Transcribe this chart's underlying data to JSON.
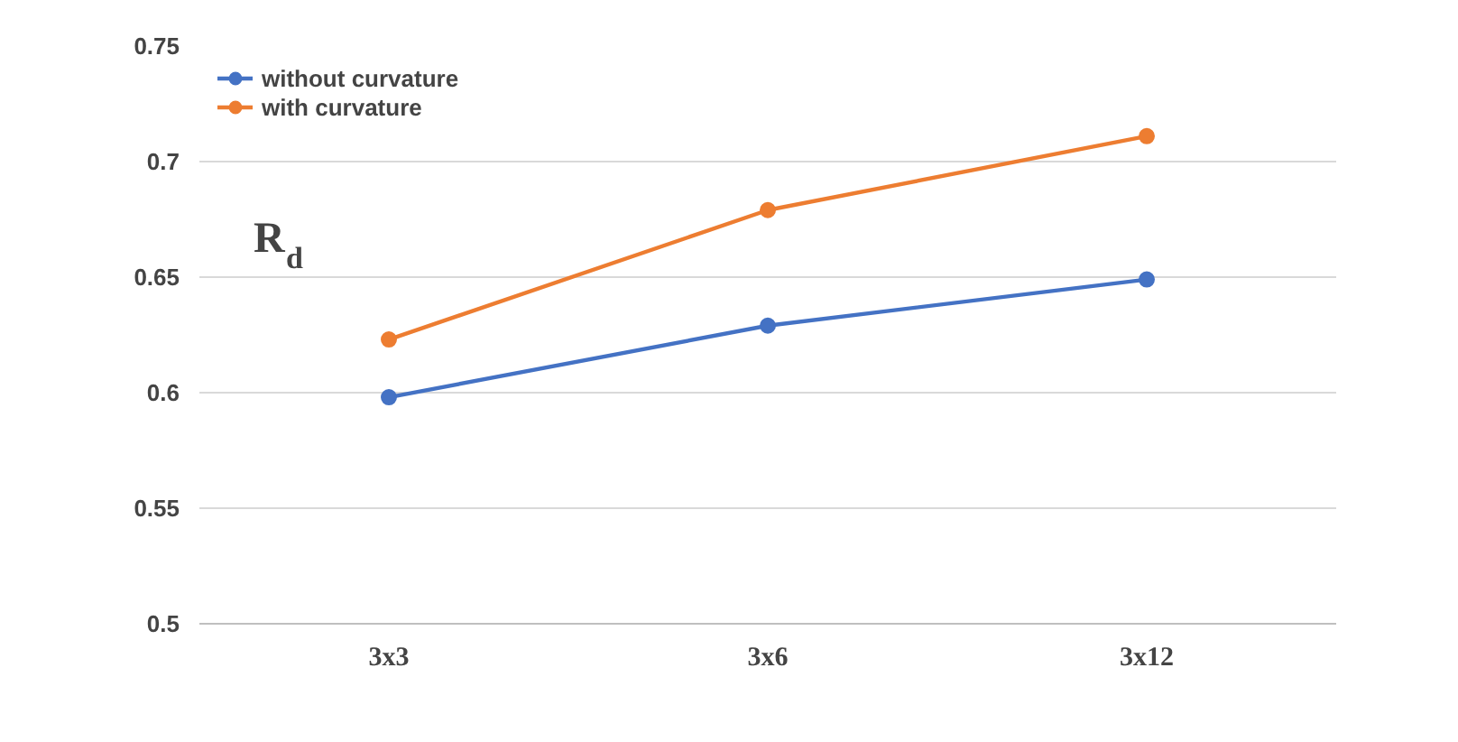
{
  "chart_data": {
    "type": "line",
    "ylabel": "R$_{d}$",
    "categories": [
      "3x3",
      "3x6",
      "3x12"
    ],
    "series": [
      {
        "name": "without curvature",
        "color": "#4472c4",
        "values": [
          0.598,
          0.629,
          0.649
        ]
      },
      {
        "name": "with curvature",
        "color": "#ed7d31",
        "values": [
          0.623,
          0.679,
          0.711
        ]
      }
    ],
    "ylim": [
      0.5,
      0.75
    ],
    "yticks": [
      0.5,
      0.55,
      0.6,
      0.65,
      0.7,
      0.75
    ],
    "grid": "y",
    "legend": "top left",
    "marker": "circle",
    "line_style": "solid"
  }
}
